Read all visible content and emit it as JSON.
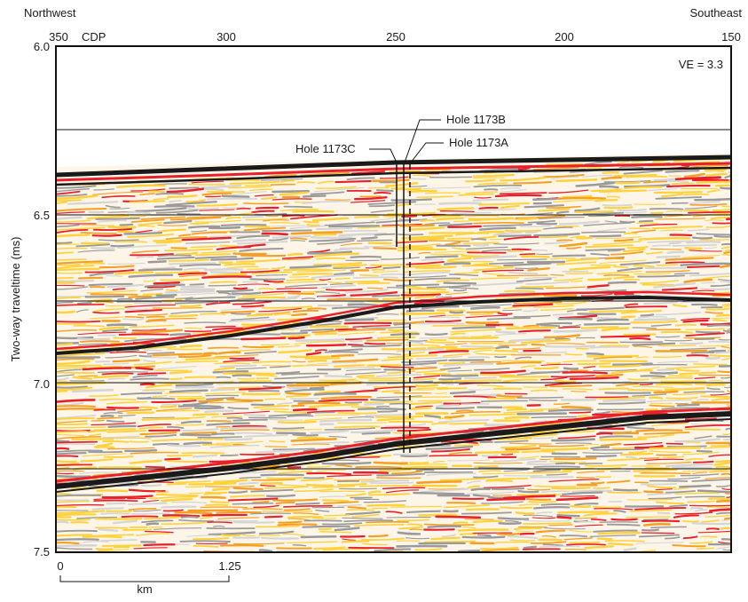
{
  "header": {
    "left_direction": "Northwest",
    "right_direction": "Southeast",
    "cdp_label": "CDP",
    "cdp_ticks": [
      "350",
      "300",
      "250",
      "200",
      "150"
    ]
  },
  "y_axis": {
    "label": "Two-way traveltime (ms)",
    "ticks": [
      "6.0",
      "6.5",
      "7.0",
      "7.5"
    ]
  },
  "annotations": {
    "vertical_exaggeration": "VE = 3.3",
    "holes": [
      "Hole 1173C",
      "Hole 1173B",
      "Hole 1173A"
    ]
  },
  "scale_bar": {
    "start": "0",
    "end": "1.25",
    "unit": "km"
  },
  "colors": {
    "background": "#fdf5e8",
    "strong_reflector": "#1a1a1a",
    "red": "#e8202a",
    "orange": "#f4a024",
    "yellow": "#ffd23c",
    "gray": "#9a9a9a",
    "light_gray": "#d5d5d5"
  }
}
